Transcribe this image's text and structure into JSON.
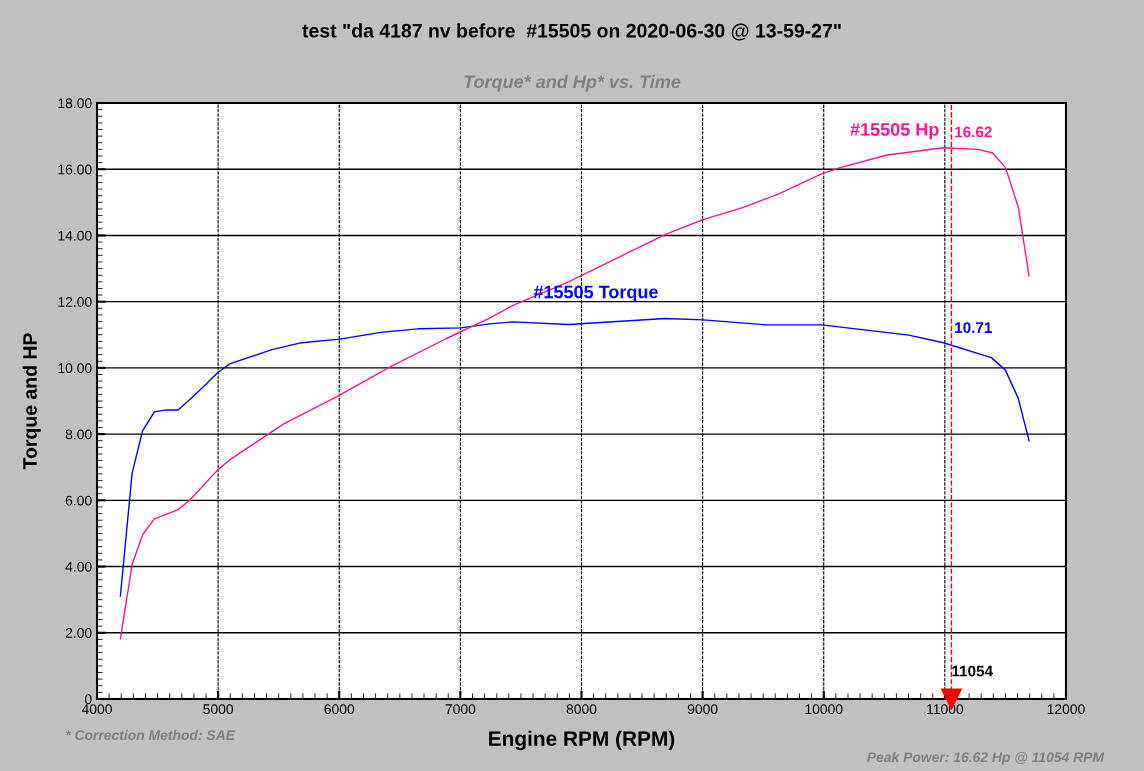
{
  "chart_data": {
    "type": "line",
    "title": "test \"da 4187 nv before  #15505 on 2020-06-30 @ 13-59-27\"",
    "subtitle": "Torque* and Hp* vs. Time",
    "xlabel": "Engine RPM (RPM)",
    "ylabel": "Torque and HP",
    "xlim": [
      4000,
      12000
    ],
    "xticks": [
      4000,
      5000,
      6000,
      7000,
      8000,
      9000,
      10000,
      11000,
      12000
    ],
    "ylim": [
      0,
      18
    ],
    "yticks": [
      0,
      {
        "value": 2,
        "label": "2.00"
      },
      {
        "value": 4,
        "label": "4.00"
      },
      {
        "value": 6,
        "label": "6.00"
      },
      {
        "value": 8,
        "label": "8.00"
      },
      {
        "value": 10,
        "label": "10.00"
      },
      {
        "value": 12,
        "label": "12.00"
      },
      {
        "value": 14,
        "label": "14.00"
      },
      {
        "value": 16,
        "label": "16.00"
      },
      {
        "value": 18,
        "label": "18.00"
      }
    ],
    "grid": true,
    "legend": false,
    "marker": "none",
    "line_style": "solid",
    "series": [
      {
        "name": "#15505 Torque",
        "color": "#0000ff",
        "x": [
          4193,
          4290,
          4376,
          4474,
          4572,
          4670,
          4769,
          4889,
          4997,
          5095,
          5444,
          5672,
          6005,
          6358,
          6651,
          7004,
          7242,
          7435,
          7893,
          8693,
          9004,
          9525,
          9983,
          10702,
          10989,
          11383,
          11499,
          11606,
          11695
        ],
        "values": [
          3.11,
          6.82,
          8.1,
          8.67,
          8.73,
          8.73,
          9.05,
          9.47,
          9.86,
          10.12,
          10.55,
          10.75,
          10.87,
          11.08,
          11.18,
          11.21,
          11.33,
          11.39,
          11.31,
          11.49,
          11.45,
          11.3,
          11.3,
          10.99,
          10.76,
          10.31,
          9.94,
          9.08,
          7.8
        ]
      },
      {
        "name": "#15505 Hp",
        "color": "#ff1493",
        "x": [
          4193,
          4290,
          4376,
          4474,
          4670,
          4769,
          4997,
          5095,
          5542,
          6000,
          6424,
          6881,
          7242,
          7435,
          7893,
          8693,
          9004,
          9330,
          9624,
          9983,
          10128,
          10523,
          10989,
          11276,
          11395,
          11502,
          11606,
          11695
        ],
        "values": [
          1.82,
          4.06,
          4.96,
          5.44,
          5.72,
          6.02,
          6.92,
          7.22,
          8.31,
          9.17,
          10.04,
          10.88,
          11.5,
          11.89,
          12.6,
          14.03,
          14.48,
          14.84,
          15.25,
          15.86,
          16.04,
          16.43,
          16.65,
          16.6,
          16.49,
          16.04,
          14.86,
          12.78
        ]
      }
    ],
    "ref_lines": [
      {
        "axis": "x",
        "value": 11054,
        "label": "11054",
        "color": "#ff0000",
        "line_style": "dashed"
      }
    ],
    "annotations": [
      {
        "text": "16.62",
        "x": 11054,
        "y": 16.62
      },
      {
        "text": "10.71",
        "x": 11054,
        "y": 10.71
      },
      "* Correction Method: SAE",
      "Peak Power: 16.62 Hp @ 11054 RPM"
    ]
  }
}
